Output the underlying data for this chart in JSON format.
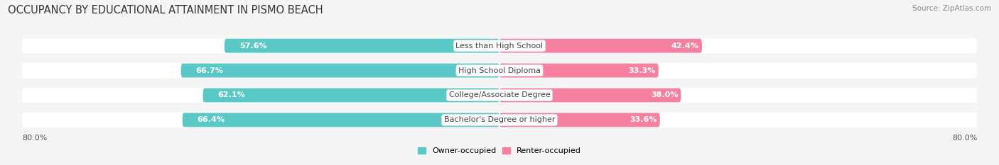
{
  "title": "OCCUPANCY BY EDUCATIONAL ATTAINMENT IN PISMO BEACH",
  "source": "Source: ZipAtlas.com",
  "categories": [
    "Less than High School",
    "High School Diploma",
    "College/Associate Degree",
    "Bachelor's Degree or higher"
  ],
  "owner_values": [
    57.6,
    66.7,
    62.1,
    66.4
  ],
  "renter_values": [
    42.4,
    33.3,
    38.0,
    33.6
  ],
  "owner_color": "#5BC8C8",
  "renter_color": "#F580A0",
  "owner_label": "Owner-occupied",
  "renter_label": "Renter-occupied",
  "total_width": 80.0,
  "x_left_label": "80.0%",
  "x_right_label": "80.0%",
  "bar_height": 0.62,
  "bg_color": "#f5f5f5",
  "bar_bg_color": "#e4e4e4",
  "title_fontsize": 10.5,
  "source_fontsize": 7.5,
  "label_fontsize": 8,
  "value_fontsize": 8,
  "cat_label_fontsize": 8
}
